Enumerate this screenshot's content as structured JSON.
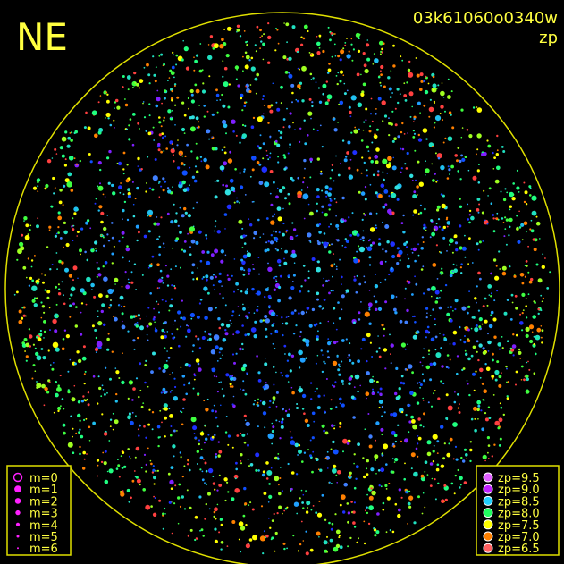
{
  "header": {
    "title": "NE",
    "image_id": "03k61060o0340w",
    "metric": "zp"
  },
  "magnitude_legend": {
    "items": [
      "m=0",
      "m=1",
      "m=2",
      "m=3",
      "m=4",
      "m=5",
      "m=6"
    ],
    "color": "#ff20ff"
  },
  "zp_legend": {
    "items": [
      {
        "label": "zp=9.5",
        "color": "#e060ff"
      },
      {
        "label": "zp=9.0",
        "color": "#c020ff"
      },
      {
        "label": "zp=8.5",
        "color": "#20d0ff"
      },
      {
        "label": "zp=8.0",
        "color": "#20ff60"
      },
      {
        "label": "zp=7.5",
        "color": "#ffff00"
      },
      {
        "label": "zp=7.0",
        "color": "#ff8000"
      },
      {
        "label": "zp=6.5",
        "color": "#ff6060"
      }
    ]
  }
}
